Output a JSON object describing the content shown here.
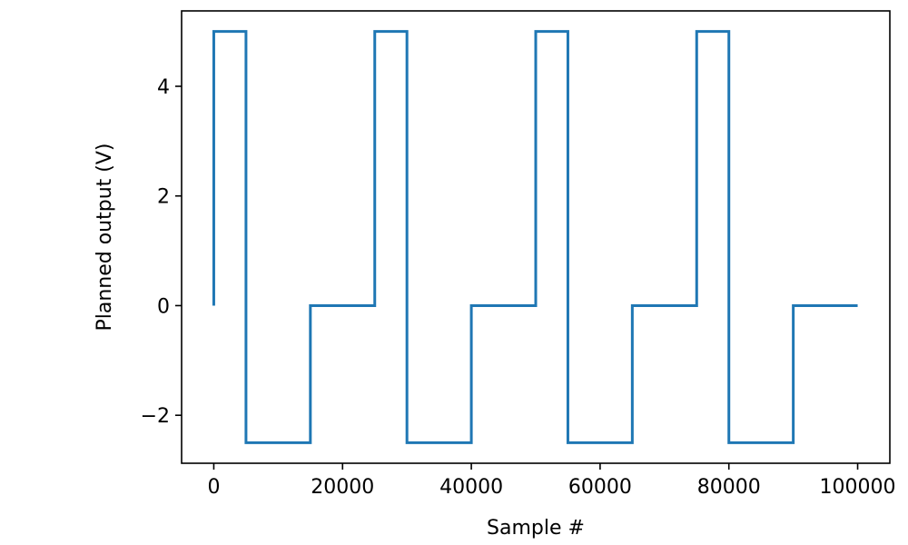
{
  "chart_data": {
    "type": "line",
    "title": "",
    "xlabel": "Sample #",
    "ylabel": "Planned output (V)",
    "xlim": [
      -5000,
      105000
    ],
    "ylim": [
      -2.875,
      5.375
    ],
    "xticks": [
      0,
      20000,
      40000,
      60000,
      80000,
      100000
    ],
    "xtick_labels": [
      "0",
      "20000",
      "40000",
      "60000",
      "80000",
      "100000"
    ],
    "yticks": [
      -2,
      0,
      2,
      4
    ],
    "ytick_labels": [
      "−2",
      "0",
      "2",
      "4"
    ],
    "grid": false,
    "series": [
      {
        "color": "#1f77b4",
        "drawstyle": "steps",
        "x": [
          0,
          0,
          5000,
          5000,
          15000,
          15000,
          25000,
          25000,
          30000,
          30000,
          40000,
          40000,
          50000,
          50000,
          55000,
          55000,
          65000,
          65000,
          75000,
          75000,
          80000,
          80000,
          90000,
          90000,
          100000
        ],
        "y": [
          0,
          5,
          5,
          -2.5,
          -2.5,
          0,
          0,
          5,
          5,
          -2.5,
          -2.5,
          0,
          0,
          5,
          5,
          -2.5,
          -2.5,
          0,
          0,
          5,
          5,
          -2.5,
          -2.5,
          0,
          0
        ]
      }
    ]
  }
}
